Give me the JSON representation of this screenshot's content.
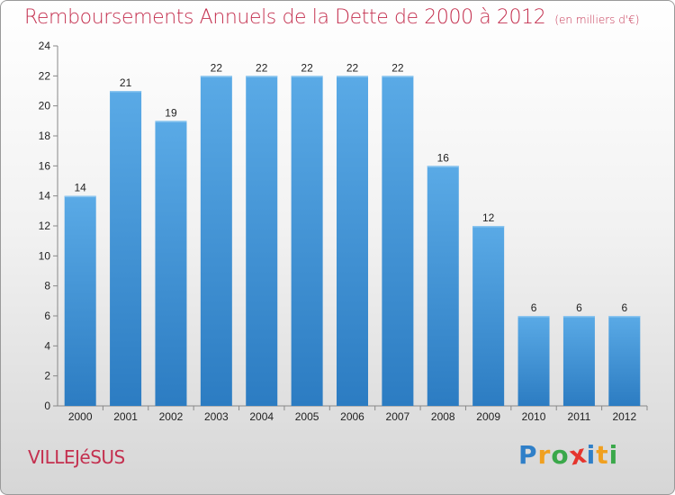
{
  "title": "Remboursements Annuels de la Dette de 2000 à 2012",
  "unit": "(en milliers d'€)",
  "city": "VILLEJéSUS",
  "logo": {
    "letters": [
      "P",
      "r",
      "o",
      "x",
      "i",
      "t",
      "i"
    ],
    "colors": [
      "#2f7fc8",
      "#f0a020",
      "#3aa84a",
      "#e5352d",
      "#2f7fc8",
      "#f0a020",
      "#3aa84a"
    ]
  },
  "chart_data": {
    "type": "bar",
    "categories": [
      "2000",
      "2001",
      "2002",
      "2003",
      "2004",
      "2005",
      "2006",
      "2007",
      "2008",
      "2009",
      "2010",
      "2011",
      "2012"
    ],
    "values": [
      14,
      21,
      19,
      22,
      22,
      22,
      22,
      22,
      16,
      12,
      6,
      6,
      6
    ],
    "ylim": [
      0,
      24
    ],
    "yticks": [
      0,
      2,
      4,
      6,
      8,
      10,
      12,
      14,
      16,
      18,
      20,
      22,
      24
    ],
    "grid": false,
    "bar_color": "#3a8fd6"
  }
}
